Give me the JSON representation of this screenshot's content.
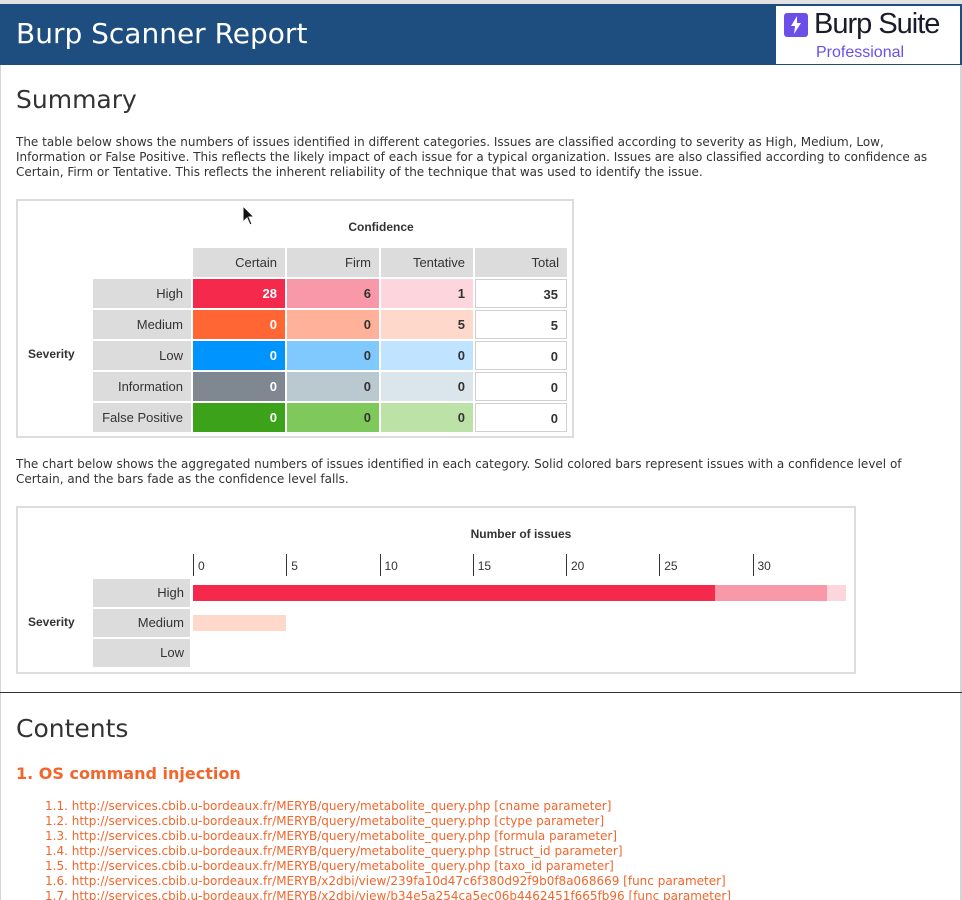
{
  "header": {
    "title": "Burp Scanner Report",
    "logo_brand": "Burp Suite",
    "logo_edition": "Professional"
  },
  "summary": {
    "heading": "Summary",
    "intro": "The table below shows the numbers of issues identified in different categories. Issues are classified according to severity as High, Medium, Low, Information or False Positive. This reflects the likely impact of each issue for a typical organization. Issues are also classified according to confidence as Certain, Firm or Tentative. This reflects the inherent reliability of the technique that was used to identify the issue.",
    "table": {
      "confidence_label": "Confidence",
      "severity_label": "Severity",
      "columns": [
        "Certain",
        "Firm",
        "Tentative",
        "Total"
      ],
      "rows": [
        {
          "label": "High",
          "values": [
            "28",
            "6",
            "1",
            "35"
          ]
        },
        {
          "label": "Medium",
          "values": [
            "0",
            "0",
            "5",
            "5"
          ]
        },
        {
          "label": "Low",
          "values": [
            "0",
            "0",
            "0",
            "0"
          ]
        },
        {
          "label": "Information",
          "values": [
            "0",
            "0",
            "0",
            "0"
          ]
        },
        {
          "label": "False Positive",
          "values": [
            "0",
            "0",
            "0",
            "0"
          ]
        }
      ]
    },
    "chart_intro": "The chart below shows the aggregated numbers of issues identified in each category. Solid colored bars represent issues with a confidence level of Certain, and the bars fade as the confidence level falls."
  },
  "colors": {
    "header_bg": "#1d4e7f",
    "high": [
      "#f5294b",
      "#f898a8",
      "#fcd6dc"
    ],
    "medium": [
      "#ff6633",
      "#ffb199",
      "#ffd8cc"
    ],
    "low": [
      "#0094ff",
      "#80c9ff",
      "#c0e4ff"
    ],
    "information": [
      "#7f8791",
      "#bac8cf",
      "#dbe6ec"
    ],
    "false_positive": [
      "#3ba21a",
      "#7fc95c",
      "#bde2a8"
    ],
    "link": "#f2662c"
  },
  "chart_data": {
    "type": "bar",
    "orientation": "horizontal",
    "stacked": true,
    "title": "Number of issues",
    "ylabel": "Severity",
    "categories": [
      "High",
      "Medium",
      "Low"
    ],
    "series": [
      {
        "name": "Certain",
        "values": [
          28,
          0,
          0
        ]
      },
      {
        "name": "Firm",
        "values": [
          6,
          0,
          0
        ]
      },
      {
        "name": "Tentative",
        "values": [
          1,
          5,
          0
        ]
      }
    ],
    "xticks": [
      "0",
      "5",
      "10",
      "15",
      "20",
      "25",
      "30"
    ],
    "xlim": [
      0,
      35
    ]
  },
  "contents": {
    "heading": "Contents",
    "issue_title": "1. OS command injection",
    "links": [
      "1.1. http://services.cbib.u-bordeaux.fr/MERYB/query/metabolite_query.php [cname parameter]",
      "1.2. http://services.cbib.u-bordeaux.fr/MERYB/query/metabolite_query.php [ctype parameter]",
      "1.3. http://services.cbib.u-bordeaux.fr/MERYB/query/metabolite_query.php [formula parameter]",
      "1.4. http://services.cbib.u-bordeaux.fr/MERYB/query/metabolite_query.php [struct_id parameter]",
      "1.5. http://services.cbib.u-bordeaux.fr/MERYB/query/metabolite_query.php [taxo_id parameter]",
      "1.6. http://services.cbib.u-bordeaux.fr/MERYB/x2dbi/view/239fa10d47c6f380d92f9b0f8a068669 [func parameter]",
      "1.7. http://services.cbib.u-bordeaux.fr/MERYB/x2dbi/view/b34e5a254ca5ec06b4462451f665fb96 [func parameter]"
    ]
  }
}
